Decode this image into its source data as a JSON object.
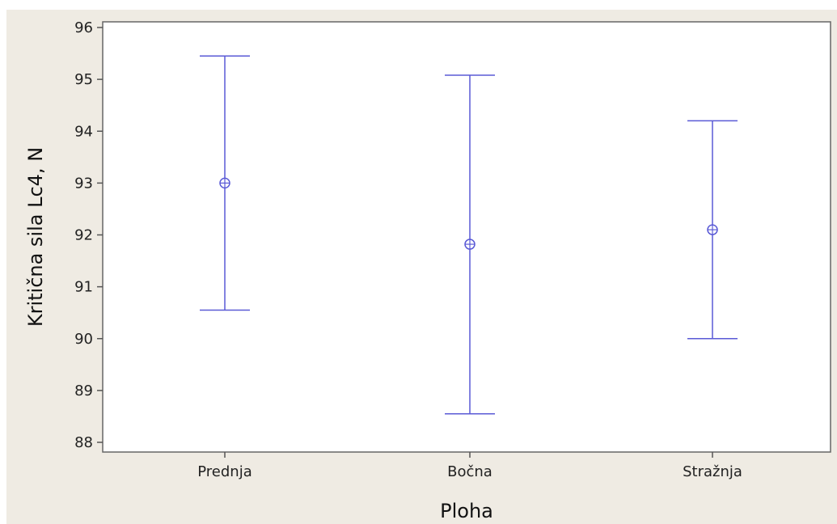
{
  "chart_data": {
    "type": "interval",
    "title": "",
    "xlabel": "Ploha",
    "ylabel": "Kritična sila Lc4, N",
    "categories": [
      "Prednja",
      "Bočna",
      "Stražnja"
    ],
    "series": [
      {
        "mean": [
          93.0,
          91.82,
          92.1
        ],
        "upper": [
          95.45,
          95.08,
          94.2
        ],
        "lower": [
          90.55,
          88.55,
          90.0
        ]
      }
    ],
    "ylim": [
      88,
      96
    ],
    "yticks": [
      88,
      89,
      90,
      91,
      92,
      93,
      94,
      95,
      96
    ],
    "grid": false,
    "legend": "none"
  },
  "colors": {
    "interval": "#5a5ad6",
    "plot_background": "#ffffff",
    "frame_background": "#efebe3",
    "axis": "#555555"
  }
}
